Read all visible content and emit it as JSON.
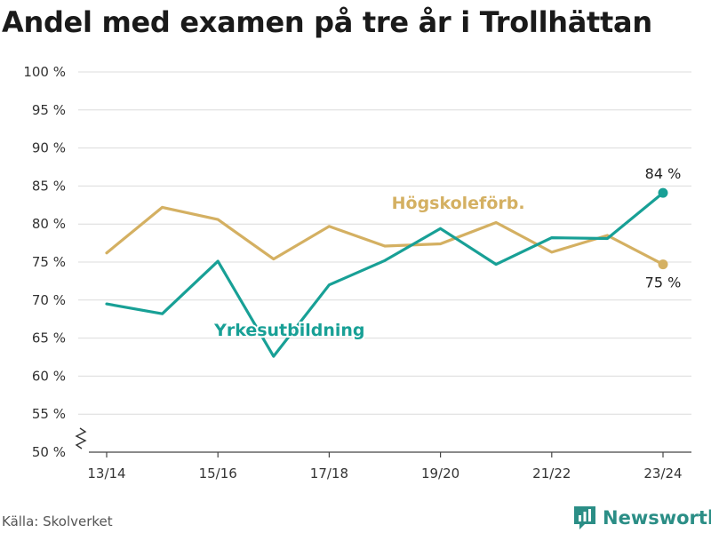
{
  "title": "Andel med examen på tre år i Trollhättan",
  "source": "Källa: Skolverket",
  "brand": "Newsworthy",
  "chart_data": {
    "type": "line",
    "title": "Andel med examen på tre år i Trollhättan",
    "xlabel": "",
    "ylabel": "",
    "ylim": [
      50,
      100
    ],
    "ytick_values": [
      50,
      55,
      60,
      65,
      70,
      75,
      80,
      85,
      90,
      95,
      100
    ],
    "ytick_labels": [
      "50 %",
      "55 %",
      "60 %",
      "65 %",
      "70 %",
      "75 %",
      "80 %",
      "85 %",
      "90 %",
      "95 %",
      "100 %"
    ],
    "x": [
      "13/14",
      "14/15",
      "15/16",
      "16/17",
      "17/18",
      "18/19",
      "19/20",
      "20/21",
      "21/22",
      "22/23",
      "23/24"
    ],
    "xtick_labels": [
      "13/14",
      "15/16",
      "17/18",
      "19/20",
      "21/22",
      "23/24"
    ],
    "grid": true,
    "axis_break": true,
    "series": [
      {
        "name": "Högskoleförb.",
        "color": "#d4b062",
        "values": [
          76.2,
          82.2,
          80.6,
          75.4,
          79.7,
          77.1,
          77.4,
          80.2,
          76.3,
          78.5,
          74.7
        ],
        "end_label": "75 %"
      },
      {
        "name": "Yrkesutbildning",
        "color": "#18a096",
        "values": [
          69.5,
          68.2,
          75.1,
          62.6,
          72.0,
          75.2,
          79.4,
          74.7,
          78.2,
          78.1,
          84.1
        ],
        "end_label": "84 %"
      }
    ]
  }
}
